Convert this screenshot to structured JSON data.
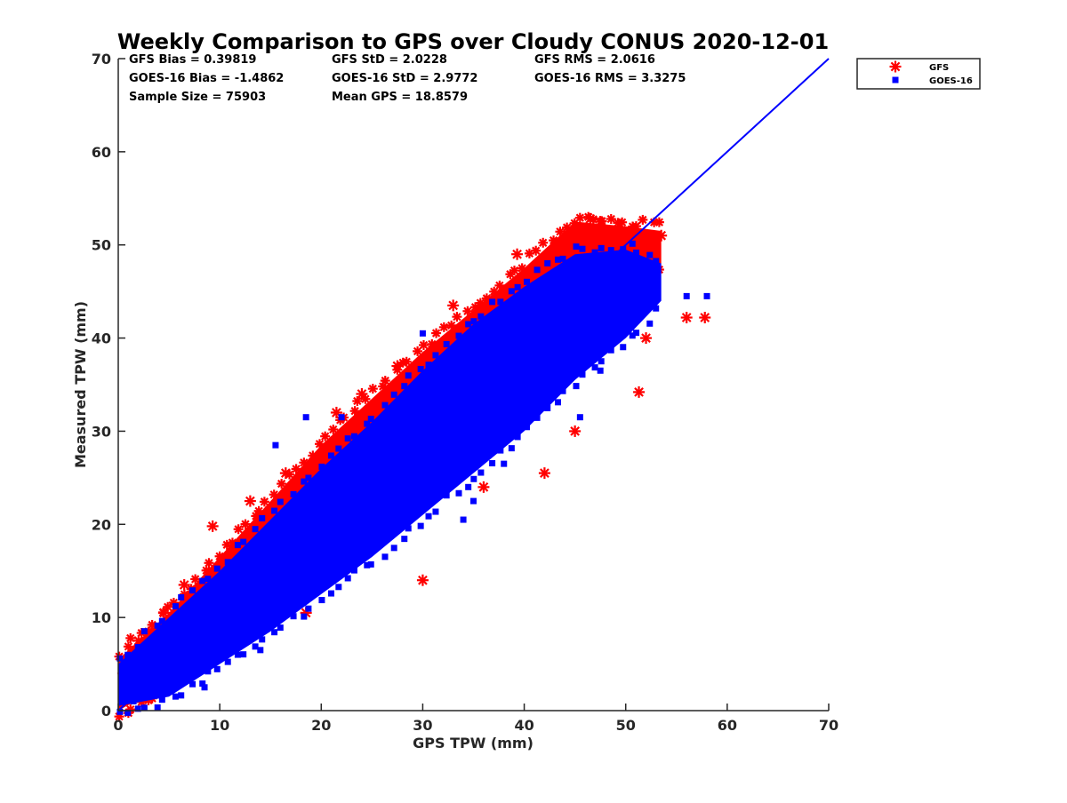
{
  "chart_data": {
    "type": "scatter",
    "title": "Weekly Comparison to GPS over Cloudy CONUS 2020-12-01",
    "xlabel": "GPS TPW (mm)",
    "ylabel": "Measured TPW (mm)",
    "xlim": [
      0,
      70
    ],
    "ylim": [
      0,
      70
    ],
    "xticks": [
      "0",
      "10",
      "20",
      "30",
      "40",
      "50",
      "60",
      "70"
    ],
    "yticks": [
      "0",
      "10",
      "20",
      "30",
      "40",
      "50",
      "60",
      "70"
    ],
    "grid": false,
    "legend_position": "outside top-right",
    "stats": [
      [
        "GFS Bias = 0.39819",
        "GFS StD = 2.0228",
        "GFS RMS = 2.0616"
      ],
      [
        "GOES-16 Bias = -1.4862",
        "GOES-16 StD = 2.9772",
        "GOES-16 RMS = 3.3275"
      ],
      [
        "Sample Size = 75903",
        "Mean GPS = 18.8579"
      ]
    ],
    "reference_line": {
      "x": [
        0,
        70
      ],
      "y": [
        0,
        70
      ],
      "color": "#0000ff"
    },
    "series": [
      {
        "name": "GFS",
        "marker": "asterisk",
        "color": "#ff0000",
        "band": {
          "x": [
            0,
            5,
            10,
            15,
            20,
            25,
            30,
            35,
            40,
            45,
            50,
            53.5
          ],
          "low": [
            0,
            3,
            7.2,
            11.5,
            16,
            20.5,
            25.3,
            29.5,
            34.5,
            39,
            44,
            48
          ],
          "high": [
            5.5,
            10.5,
            16.5,
            22.5,
            28.5,
            33.5,
            38.5,
            43,
            47.5,
            52.5,
            52,
            51.5
          ]
        },
        "outliers": [
          [
            30,
            14
          ],
          [
            45,
            30
          ],
          [
            51.3,
            34.2
          ],
          [
            56,
            42.2
          ],
          [
            57.8,
            42.2
          ],
          [
            39.3,
            49
          ],
          [
            46.5,
            52.8
          ],
          [
            18.5,
            10.5
          ],
          [
            9.3,
            19.8
          ],
          [
            52,
            40
          ],
          [
            21.5,
            32
          ],
          [
            27.5,
            37
          ],
          [
            33,
            43.5
          ],
          [
            36,
            24
          ],
          [
            40.5,
            47
          ],
          [
            6.5,
            13.5
          ],
          [
            4.5,
            10.5
          ],
          [
            2,
            7.5
          ],
          [
            13,
            22.5
          ],
          [
            16.5,
            25.5
          ],
          [
            24,
            34
          ],
          [
            47.5,
            52.5
          ],
          [
            53.5,
            51
          ],
          [
            0.5,
            4
          ],
          [
            42,
            25.5
          ]
        ]
      },
      {
        "name": "GOES-16",
        "marker": "square",
        "color": "#0000ff",
        "band": {
          "x": [
            0,
            5,
            10,
            15,
            20,
            25,
            30,
            35,
            40,
            45,
            50,
            53.5
          ],
          "low": [
            0.5,
            1.5,
            5,
            8.5,
            12.5,
            16.5,
            21,
            25.5,
            30,
            35.5,
            40,
            44
          ],
          "high": [
            5,
            10,
            15,
            20.5,
            26,
            31,
            36.5,
            41.5,
            45.5,
            49,
            49.5,
            48
          ]
        },
        "outliers": [
          [
            58,
            44.5
          ],
          [
            56,
            44.5
          ],
          [
            48,
            39
          ],
          [
            47.5,
            36.5
          ],
          [
            34,
            20.5
          ],
          [
            45.5,
            31.5
          ],
          [
            1.5,
            1
          ],
          [
            10,
            13
          ],
          [
            25,
            29
          ],
          [
            30,
            40.5
          ],
          [
            22,
            31.5
          ],
          [
            18.5,
            31.5
          ],
          [
            35,
            22.5
          ],
          [
            15.5,
            28.5
          ],
          [
            52.5,
            44.5
          ],
          [
            8.5,
            2.5
          ],
          [
            14,
            6.5
          ],
          [
            44.5,
            47
          ],
          [
            51.5,
            46.5
          ],
          [
            38,
            26.5
          ]
        ]
      }
    ]
  }
}
